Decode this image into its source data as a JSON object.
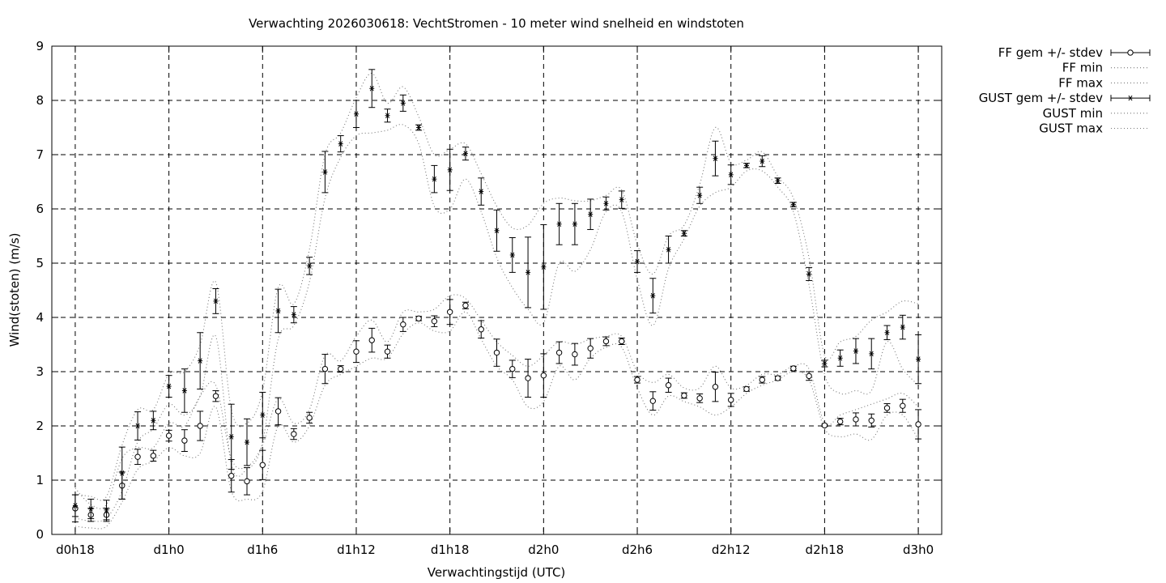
{
  "chart_data": {
    "type": "line",
    "title": "Verwachting 2026030618: VechtStromen - 10 meter wind snelheid en windstoten",
    "xlabel": "Verwachtingstijd (UTC)",
    "ylabel": "Wind(stoten) (m/s)",
    "ylim": [
      0,
      9
    ],
    "xlim": [
      -1.5,
      55.5
    ],
    "x_unit": "hours after d0h18",
    "yticks": [
      0,
      1,
      2,
      3,
      4,
      5,
      6,
      7,
      8,
      9
    ],
    "xticks": [
      {
        "x": 0,
        "label": "d0h18"
      },
      {
        "x": 6,
        "label": "d1h0"
      },
      {
        "x": 12,
        "label": "d1h6"
      },
      {
        "x": 18,
        "label": "d1h12"
      },
      {
        "x": 24,
        "label": "d1h18"
      },
      {
        "x": 30,
        "label": "d2h0"
      },
      {
        "x": 36,
        "label": "d2h6"
      },
      {
        "x": 42,
        "label": "d2h12"
      },
      {
        "x": 48,
        "label": "d2h18"
      },
      {
        "x": 54,
        "label": "d3h0"
      }
    ],
    "grid": true,
    "legend_position": "outside-top-right",
    "x": [
      0,
      1,
      2,
      3,
      4,
      5,
      6,
      7,
      8,
      9,
      10,
      11,
      12,
      13,
      14,
      15,
      16,
      17,
      18,
      19,
      20,
      21,
      22,
      23,
      24,
      25,
      26,
      27,
      28,
      29,
      30,
      31,
      32,
      33,
      34,
      35,
      36,
      37,
      38,
      39,
      40,
      41,
      42,
      43,
      44,
      45,
      46,
      47,
      48,
      49,
      50,
      51,
      52,
      53,
      54
    ],
    "series": [
      {
        "name": "FF gem +/- stdev",
        "style": "errorbar-circle",
        "mean": [
          0.48,
          0.36,
          0.36,
          0.9,
          1.43,
          1.45,
          1.82,
          1.73,
          2.0,
          2.55,
          1.08,
          0.98,
          1.28,
          2.27,
          1.85,
          2.15,
          3.05,
          3.05,
          3.37,
          3.58,
          3.37,
          3.87,
          3.98,
          3.93,
          4.1,
          4.22,
          3.78,
          3.35,
          3.05,
          2.88,
          2.93,
          3.35,
          3.32,
          3.43,
          3.56,
          3.56,
          2.85,
          2.46,
          2.75,
          2.56,
          2.51,
          2.72,
          2.48,
          2.68,
          2.85,
          2.88,
          3.06,
          2.92,
          2.01,
          2.08,
          2.12,
          2.1,
          2.33,
          2.37,
          2.03
        ],
        "stdev": [
          0.25,
          0.12,
          0.12,
          0.25,
          0.14,
          0.1,
          0.1,
          0.2,
          0.27,
          0.1,
          0.3,
          0.25,
          0.27,
          0.25,
          0.1,
          0.1,
          0.27,
          0.06,
          0.2,
          0.22,
          0.12,
          0.13,
          0.04,
          0.1,
          0.23,
          0.06,
          0.16,
          0.25,
          0.16,
          0.35,
          0.4,
          0.2,
          0.2,
          0.18,
          0.08,
          0.06,
          0.06,
          0.17,
          0.13,
          0.05,
          0.08,
          0.27,
          0.12,
          0.04,
          0.06,
          0.04,
          0.04,
          0.08,
          0.02,
          0.06,
          0.12,
          0.12,
          0.08,
          0.12,
          0.27
        ]
      },
      {
        "name": "FF min",
        "style": "dotted",
        "values": [
          0.15,
          0.12,
          0.15,
          0.6,
          1.2,
          1.35,
          1.6,
          1.45,
          1.5,
          2.35,
          0.8,
          0.65,
          0.8,
          2.0,
          1.7,
          2.0,
          2.75,
          2.95,
          3.1,
          3.25,
          3.25,
          3.7,
          3.9,
          3.75,
          3.75,
          4.1,
          3.6,
          3.1,
          2.85,
          2.35,
          2.45,
          3.1,
          2.85,
          3.25,
          3.45,
          3.45,
          2.7,
          2.2,
          2.55,
          2.45,
          2.35,
          2.2,
          2.35,
          2.6,
          2.75,
          2.85,
          3.0,
          2.85,
          1.95,
          1.8,
          1.85,
          1.75,
          2.2,
          2.2,
          1.75
        ]
      },
      {
        "name": "FF max",
        "style": "dotted",
        "values": [
          0.85,
          0.55,
          0.55,
          1.4,
          1.6,
          1.6,
          2.05,
          2.0,
          2.55,
          2.75,
          1.4,
          1.25,
          1.65,
          2.5,
          2.05,
          2.3,
          3.3,
          3.2,
          3.65,
          3.95,
          3.55,
          4.1,
          4.1,
          4.15,
          4.4,
          4.35,
          3.95,
          3.55,
          3.3,
          3.1,
          3.3,
          3.55,
          3.5,
          3.6,
          3.65,
          3.65,
          3.0,
          2.8,
          2.95,
          2.7,
          2.7,
          3.1,
          2.7,
          2.75,
          2.95,
          2.95,
          3.1,
          3.05,
          2.05,
          2.2,
          2.3,
          2.4,
          2.5,
          2.6,
          2.35
        ]
      },
      {
        "name": "GUST gem +/- stdev",
        "style": "errorbar-star",
        "mean": [
          0.53,
          0.47,
          0.45,
          1.13,
          2.0,
          2.1,
          2.73,
          2.65,
          3.2,
          4.3,
          1.8,
          1.7,
          2.2,
          4.12,
          4.05,
          4.95,
          6.68,
          7.2,
          7.75,
          8.22,
          7.72,
          7.95,
          7.5,
          6.55,
          6.72,
          7.02,
          6.32,
          5.6,
          5.15,
          4.83,
          4.93,
          5.72,
          5.72,
          5.9,
          6.1,
          6.17,
          5.03,
          4.4,
          5.25,
          5.55,
          6.25,
          6.93,
          6.63,
          6.8,
          6.88,
          6.52,
          6.08,
          4.8,
          3.15,
          3.25,
          3.38,
          3.33,
          3.72,
          3.82,
          3.23
        ],
        "stdev": [
          0.2,
          0.18,
          0.18,
          0.48,
          0.26,
          0.17,
          0.2,
          0.4,
          0.52,
          0.23,
          0.6,
          0.43,
          0.42,
          0.4,
          0.15,
          0.16,
          0.38,
          0.15,
          0.25,
          0.35,
          0.12,
          0.15,
          0.05,
          0.25,
          0.38,
          0.12,
          0.25,
          0.38,
          0.32,
          0.65,
          0.78,
          0.38,
          0.38,
          0.28,
          0.12,
          0.16,
          0.2,
          0.32,
          0.25,
          0.05,
          0.15,
          0.32,
          0.18,
          0.04,
          0.1,
          0.05,
          0.04,
          0.12,
          0.06,
          0.15,
          0.23,
          0.28,
          0.13,
          0.22,
          0.45
        ]
      },
      {
        "name": "GUST min",
        "style": "dotted",
        "values": [
          0.3,
          0.25,
          0.3,
          0.8,
          1.7,
          1.95,
          2.4,
          2.2,
          2.55,
          3.65,
          1.3,
          1.2,
          1.7,
          3.6,
          3.85,
          4.65,
          6.2,
          6.95,
          7.35,
          7.4,
          7.45,
          7.55,
          7.2,
          6.05,
          6.0,
          6.55,
          5.95,
          5.1,
          4.55,
          4.15,
          3.9,
          5.0,
          4.85,
          5.25,
          5.95,
          5.95,
          4.7,
          3.85,
          4.9,
          5.45,
          6.05,
          6.3,
          6.4,
          6.7,
          6.7,
          6.4,
          5.95,
          4.6,
          2.95,
          2.6,
          2.65,
          2.65,
          3.55,
          3.05,
          2.75
        ]
      },
      {
        "name": "GUST max",
        "style": "dotted",
        "values": [
          0.75,
          0.7,
          0.7,
          1.65,
          2.3,
          2.3,
          2.95,
          3.0,
          3.5,
          4.65,
          2.3,
          2.05,
          2.65,
          4.55,
          4.25,
          5.25,
          7.0,
          7.4,
          8.05,
          8.5,
          7.95,
          8.25,
          7.7,
          7.0,
          7.1,
          7.2,
          6.65,
          6.05,
          5.65,
          5.7,
          6.1,
          6.2,
          6.15,
          6.15,
          6.25,
          6.35,
          5.35,
          4.8,
          5.5,
          5.7,
          6.45,
          7.5,
          6.85,
          6.9,
          7.05,
          6.6,
          6.2,
          5.1,
          3.3,
          3.55,
          3.65,
          3.95,
          4.1,
          4.3,
          4.25
        ]
      }
    ]
  }
}
